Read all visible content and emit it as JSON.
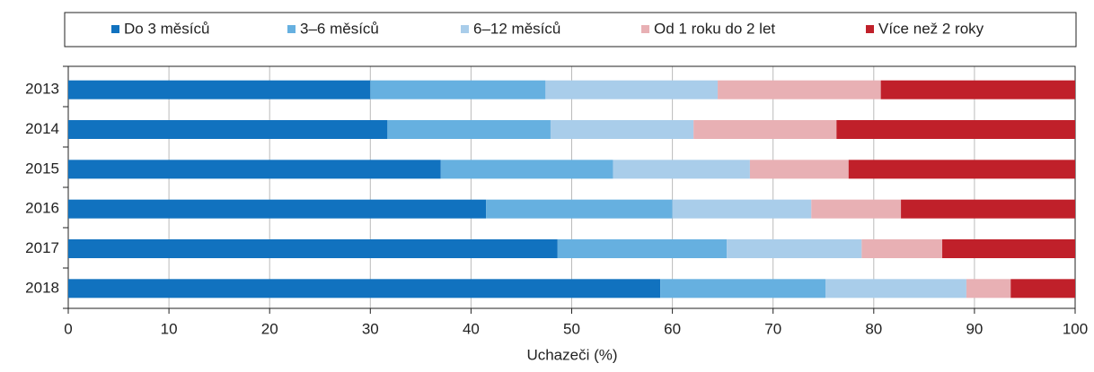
{
  "chart_data": {
    "type": "stacked_barh",
    "categories": [
      "2013",
      "2014",
      "2015",
      "2016",
      "2017",
      "2018"
    ],
    "series": [
      {
        "name": "Do 3 měsíců",
        "color": "#1172bf",
        "values": [
          30.0,
          31.7,
          37.0,
          41.5,
          48.6,
          58.8
        ]
      },
      {
        "name": "3–6 měsíců",
        "color": "#66b0e0",
        "values": [
          17.4,
          16.2,
          17.1,
          18.5,
          16.8,
          16.4
        ]
      },
      {
        "name": "6–12 měsíců",
        "color": "#a9cdea",
        "values": [
          17.1,
          14.2,
          13.6,
          13.8,
          13.4,
          14.0
        ]
      },
      {
        "name": "Od 1 roku do 2 let",
        "color": "#e8b0b4",
        "values": [
          16.2,
          14.2,
          9.8,
          8.9,
          8.0,
          4.4
        ]
      },
      {
        "name": "Více než 2 roky",
        "color": "#c0202a",
        "values": [
          19.3,
          23.7,
          22.5,
          17.3,
          13.2,
          6.4
        ]
      }
    ],
    "xlabel": "Uchazeči (%)",
    "xlim": [
      0,
      100
    ],
    "xticks": [
      0,
      10,
      20,
      30,
      40,
      50,
      60,
      70,
      80,
      90,
      100
    ],
    "grid": true,
    "legend": "top"
  }
}
